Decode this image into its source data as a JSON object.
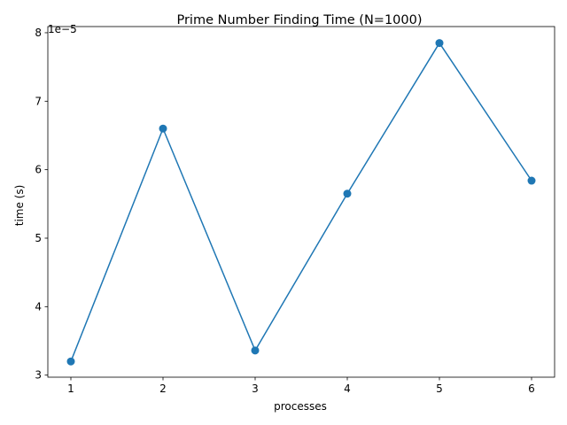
{
  "chart_data": {
    "type": "line",
    "title": "Prime Number Finding Time (N=1000)",
    "xlabel": "processes",
    "ylabel": "time (s)",
    "y_offset_label": "1e−5",
    "y_scale_factor": 1e-05,
    "xlim": [
      0.75,
      6.25
    ],
    "ylim": [
      2.97e-05,
      8.09e-05
    ],
    "x_ticks": [
      1,
      2,
      3,
      4,
      5,
      6
    ],
    "x_tick_labels": [
      "1",
      "2",
      "3",
      "4",
      "5",
      "6"
    ],
    "y_ticks": [
      3e-05,
      4e-05,
      5e-05,
      6e-05,
      7e-05,
      8e-05
    ],
    "y_tick_labels": [
      "3",
      "4",
      "5",
      "6",
      "7",
      "8"
    ],
    "grid": false,
    "legend": "none",
    "series": [
      {
        "x": [
          1,
          2,
          3,
          4,
          5,
          6
        ],
        "y": [
          3.2e-05,
          6.6e-05,
          3.36e-05,
          5.65e-05,
          7.85e-05,
          5.84e-05
        ],
        "color": "#1f77b4",
        "marker": "circle"
      }
    ]
  }
}
